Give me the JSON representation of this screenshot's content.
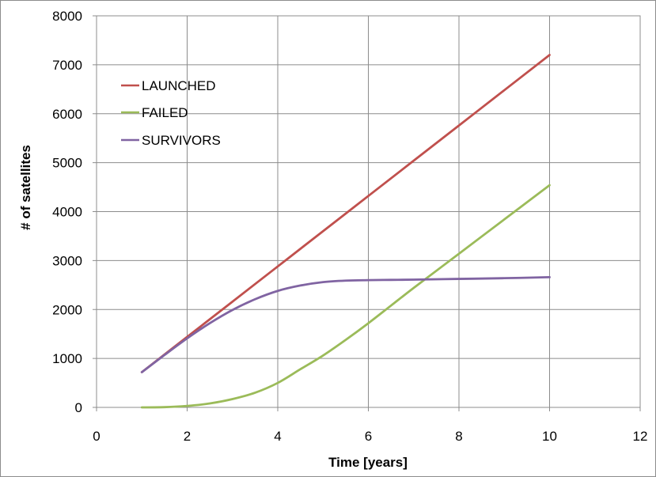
{
  "chart_data": {
    "type": "line",
    "title": "",
    "xlabel": "Time [years]",
    "ylabel": "# of satellites",
    "xlim": [
      0,
      12
    ],
    "ylim": [
      0,
      8000
    ],
    "x_ticks": [
      0,
      2,
      4,
      6,
      8,
      10,
      12
    ],
    "y_ticks": [
      0,
      1000,
      2000,
      3000,
      4000,
      5000,
      6000,
      7000,
      8000
    ],
    "grid": true,
    "legend_position": "top-left",
    "series": [
      {
        "name": "LAUNCHED",
        "color": "#c0504d",
        "x": [
          1,
          2,
          3,
          4,
          5,
          6,
          7,
          8,
          9,
          10
        ],
        "y": [
          720,
          1440,
          2160,
          2880,
          3600,
          4320,
          5040,
          5760,
          6480,
          7200
        ]
      },
      {
        "name": "FAILED",
        "color": "#9bbb59",
        "x": [
          1,
          1.5,
          2,
          2.5,
          3,
          3.5,
          4,
          4.5,
          5,
          5.5,
          6,
          6.5,
          7,
          8,
          9,
          10
        ],
        "y": [
          0,
          5,
          30,
          80,
          170,
          300,
          500,
          780,
          1060,
          1380,
          1720,
          2080,
          2440,
          3140,
          3840,
          4540
        ]
      },
      {
        "name": "SURVIVORS",
        "color": "#8064a2",
        "x": [
          1,
          1.5,
          2,
          2.5,
          3,
          3.5,
          4,
          4.5,
          5,
          5.5,
          6,
          6.5,
          7,
          8,
          9,
          10
        ],
        "y": [
          720,
          1070,
          1410,
          1720,
          1990,
          2210,
          2380,
          2490,
          2560,
          2590,
          2600,
          2605,
          2610,
          2625,
          2640,
          2660
        ]
      }
    ]
  }
}
